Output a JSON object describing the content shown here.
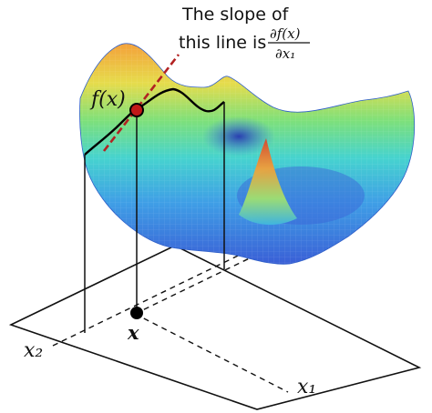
{
  "annotation": {
    "line1": "The slope of",
    "line2": "this line is",
    "fraction_numerator": "∂f(x)",
    "fraction_denominator": "∂x₁"
  },
  "labels": {
    "function_value": "f(x)",
    "input_point": "x",
    "axis_x1": "x₁",
    "axis_x2": "x₂"
  },
  "colors": {
    "tangent_line": "#b22222",
    "contour_curve": "#000000",
    "point": "#000000",
    "surface_low": "#3a63d8",
    "surface_mid": "#4fd2c8",
    "surface_high": "#f2b84a",
    "peak": "#e0502a"
  }
}
